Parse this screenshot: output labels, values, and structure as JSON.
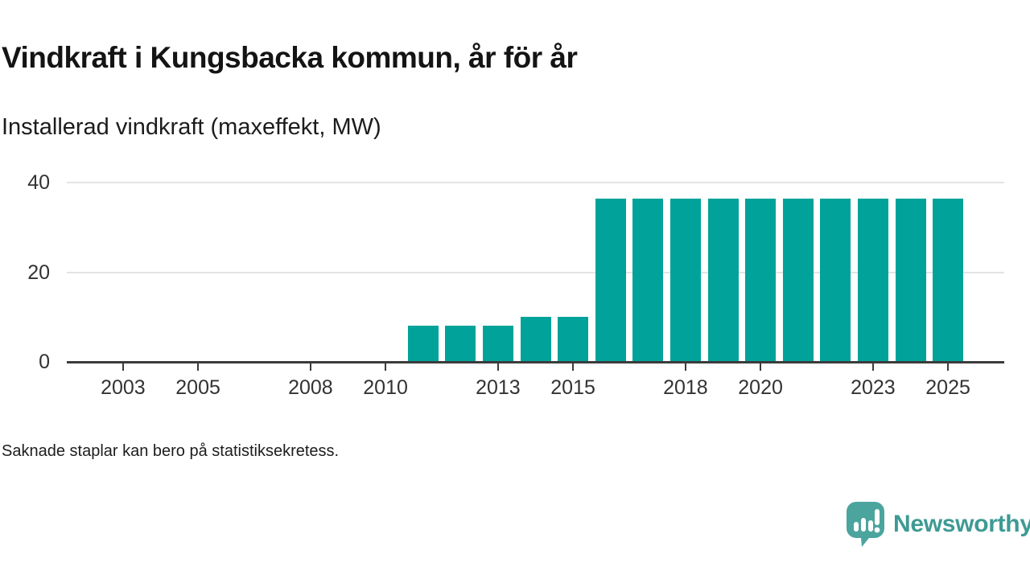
{
  "chart_data": {
    "type": "bar",
    "title": "Vindkraft i Kungsbacka kommun, år för år",
    "subtitle": "Installerad vindkraft (maxeffekt, MW)",
    "ylabel": "MW",
    "ylim": [
      0,
      40
    ],
    "y_ticks": [
      0,
      20,
      40
    ],
    "x_domain": [
      2002,
      2026
    ],
    "x_tick_labels": [
      "2003",
      "2005",
      "2008",
      "2010",
      "2013",
      "2015",
      "2018",
      "2020",
      "2023",
      "2025"
    ],
    "grid": "horizontal-light",
    "legend": "none",
    "bar_color": "#00a29a",
    "categories": [
      2011,
      2012,
      2013,
      2014,
      2015,
      2016,
      2017,
      2018,
      2019,
      2020,
      2021,
      2022,
      2023,
      2024,
      2025
    ],
    "values": [
      8,
      8,
      8,
      10,
      10,
      36.5,
      36.5,
      36.5,
      36.5,
      36.5,
      36.5,
      36.5,
      36.5,
      36.5,
      36.5
    ]
  },
  "footnote": "Saknade staplar kan bero på statistiksekretess.",
  "brand": {
    "name": "Newsworthy",
    "logo_icon": "speech-bubble-bar-chart-icon",
    "icon_color": "#4ba49e",
    "text_color": "#3e9a94"
  }
}
